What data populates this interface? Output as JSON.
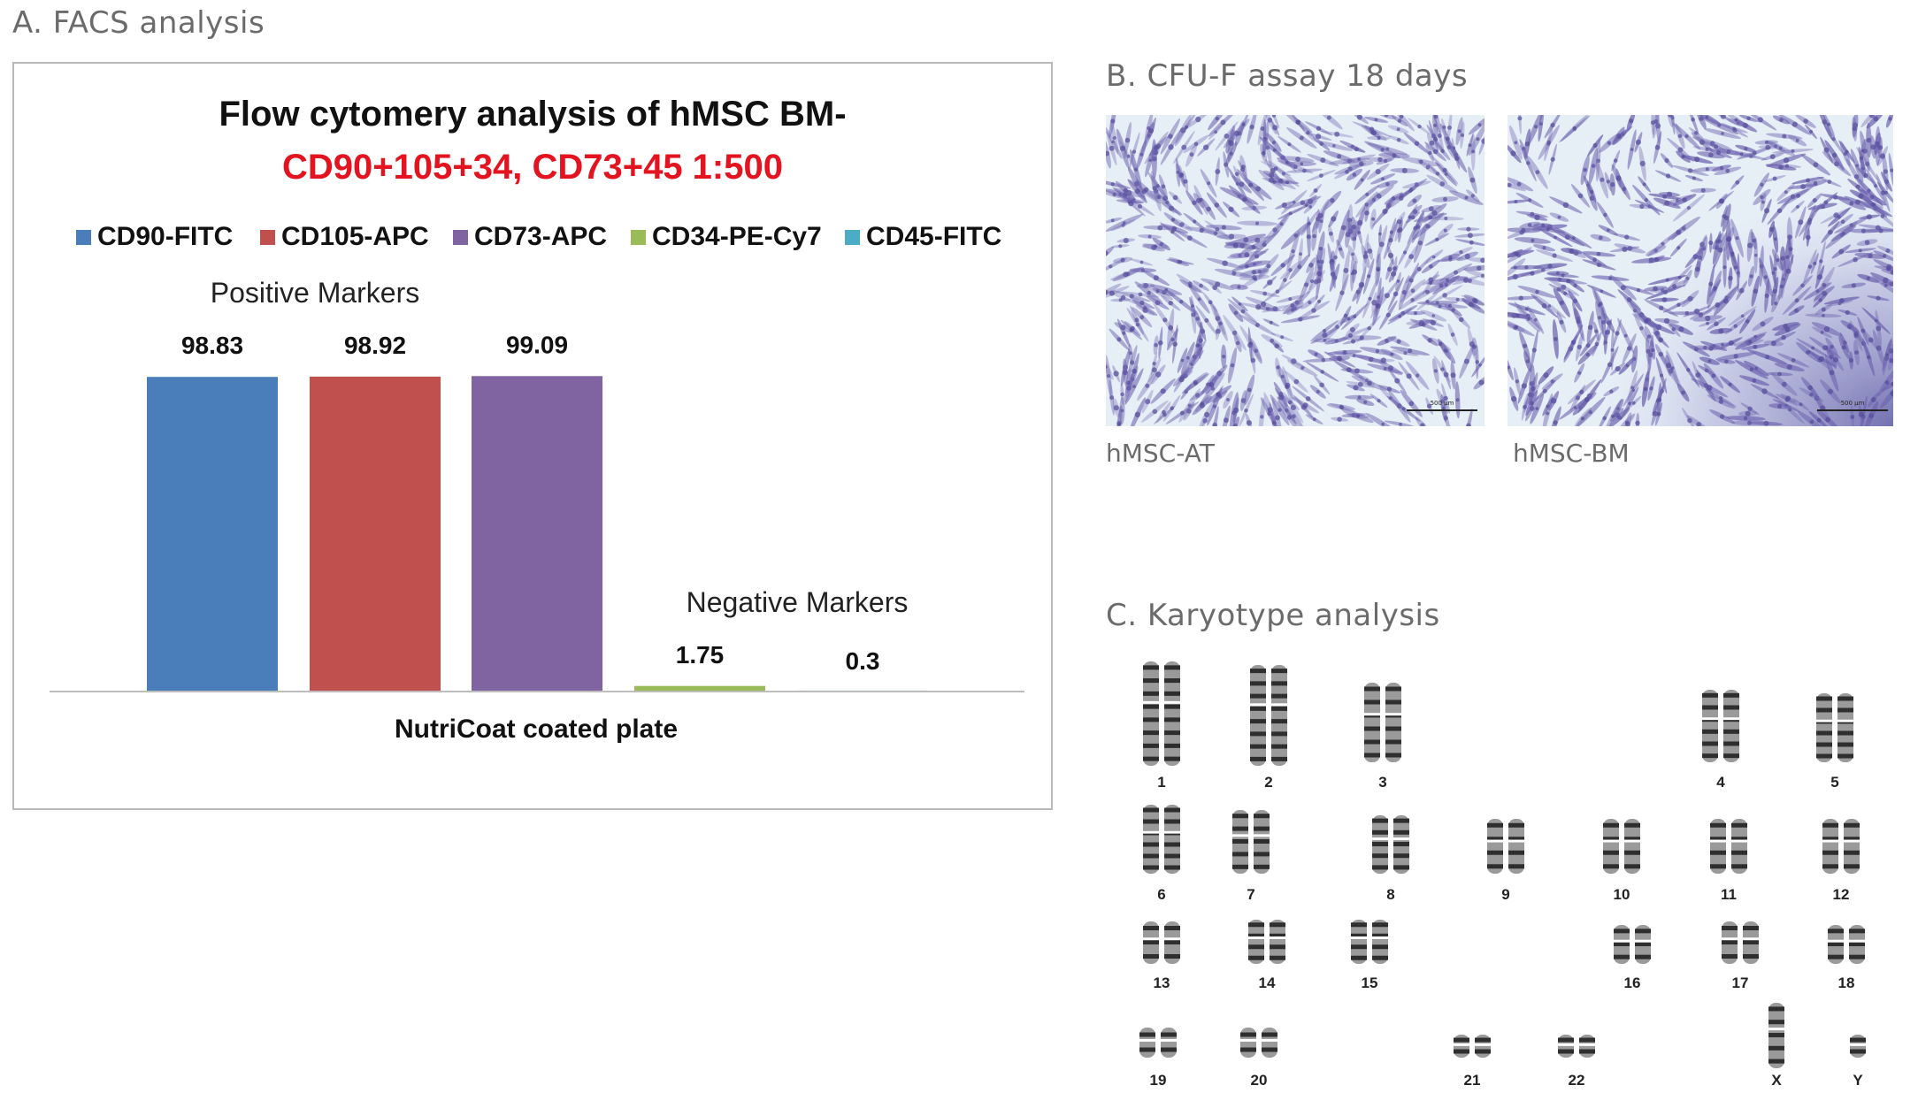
{
  "section_a": {
    "title": "A. FACS analysis"
  },
  "section_b": {
    "title": "B. CFU-F assay 18 days",
    "images": [
      {
        "caption": "hMSC-AT",
        "scale_bar": "500 μm"
      },
      {
        "caption": "hMSC-BM",
        "scale_bar": "500 μm"
      }
    ]
  },
  "section_c": {
    "title": "C. Karyotype analysis",
    "chromosomes": [
      "1",
      "2",
      "3",
      "4",
      "5",
      "6",
      "7",
      "8",
      "9",
      "10",
      "11",
      "12",
      "13",
      "14",
      "15",
      "16",
      "17",
      "18",
      "19",
      "20",
      "21",
      "22",
      "X",
      "Y"
    ]
  },
  "chart_data": {
    "type": "bar",
    "title_line1": "Flow cytomery  analysis of hMSC BM-",
    "title_line2": "CD90+105+34, CD73+45 1:500",
    "title_line2_color": "#e3141f",
    "xlabel": "NutriCoat coated plate",
    "group_labels": [
      "Positive Markers",
      "Negative Markers"
    ],
    "categories": [
      "CD90-FITC",
      "CD105-APC",
      "CD73-APC",
      "CD34-PE-Cy7",
      "CD45-FITC"
    ],
    "values": [
      98.83,
      98.92,
      99.09,
      1.75,
      0.3
    ],
    "value_labels": [
      "98.83",
      "98.92",
      "99.09",
      "1.75",
      "0.3"
    ],
    "colors": [
      "#4a7ebb",
      "#c0504d",
      "#8064a2",
      "#9bbb59",
      "#4bacc6"
    ],
    "legend_position": "top",
    "grid": false,
    "ylim": [
      0,
      100
    ]
  }
}
